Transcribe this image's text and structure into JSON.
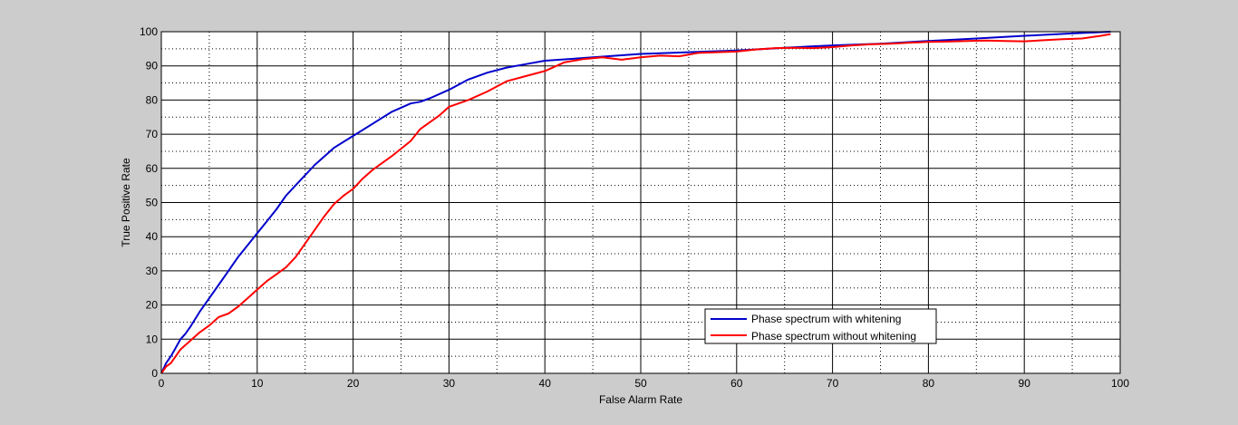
{
  "chart_data": {
    "type": "line",
    "title": "",
    "xlabel": "False Alarm Rate",
    "ylabel": "True Positive Rate",
    "xlim": [
      0,
      100
    ],
    "ylim": [
      0,
      100
    ],
    "xticks": [
      0,
      10,
      20,
      30,
      40,
      50,
      60,
      70,
      80,
      90,
      100
    ],
    "yticks": [
      0,
      10,
      20,
      30,
      40,
      50,
      60,
      70,
      80,
      90,
      100
    ],
    "grid": true,
    "minor_grid": true,
    "legend_position": "lower-right",
    "series": [
      {
        "name": "Phase spectrum with whitening",
        "color": "#0000cc",
        "x": [
          0,
          0.5,
          1,
          1.5,
          2,
          2.5,
          3,
          4,
          5,
          6,
          7,
          8,
          9,
          10,
          11,
          12,
          13,
          14,
          16,
          18,
          20,
          22,
          24,
          26,
          27,
          28,
          30,
          32,
          34,
          36,
          38,
          40,
          45,
          50,
          55,
          60,
          65,
          70,
          75,
          80,
          85,
          90,
          95,
          99
        ],
        "y": [
          0,
          3,
          5,
          7.5,
          10,
          11.5,
          13.5,
          18,
          22,
          26,
          30,
          34,
          37.5,
          41,
          44.5,
          48,
          52,
          55,
          61,
          66,
          69.5,
          73,
          76.5,
          79,
          79.5,
          80.5,
          83,
          86,
          88,
          89.5,
          90.5,
          91.5,
          92.5,
          93.5,
          94,
          94.5,
          95.3,
          96,
          96.5,
          97.3,
          98,
          98.8,
          99.5,
          100
        ]
      },
      {
        "name": "Phase spectrum without whitening",
        "color": "#ff0000",
        "x": [
          0,
          0.5,
          1,
          1.5,
          2,
          3,
          4,
          5,
          6,
          7,
          8,
          9,
          10,
          11,
          12,
          13,
          14,
          15,
          16,
          17,
          18,
          19,
          20,
          21,
          22,
          24,
          26,
          27,
          28,
          29,
          30,
          32,
          34,
          36,
          38,
          40,
          42,
          44,
          46,
          48,
          50,
          52,
          54,
          56,
          58,
          60,
          62,
          64,
          66,
          68,
          70,
          72,
          74,
          76,
          78,
          80,
          82,
          84,
          86,
          88,
          90,
          92,
          94,
          96,
          98,
          99
        ],
        "y": [
          0,
          2,
          3,
          5,
          7,
          9.5,
          12,
          14,
          16.5,
          17.5,
          19.5,
          22,
          24.5,
          27,
          29,
          31,
          34,
          38,
          42,
          46,
          49.5,
          52,
          54,
          57,
          59.5,
          63.5,
          68,
          71.5,
          73.5,
          75.5,
          78,
          80,
          82.5,
          85.5,
          87,
          88.5,
          91,
          92,
          92.5,
          91.8,
          92.5,
          93,
          92.8,
          93.8,
          94,
          94.2,
          94.8,
          95.2,
          95.3,
          95.2,
          95.5,
          96,
          96.3,
          96.5,
          96.8,
          97,
          97.1,
          97.3,
          97.4,
          97.3,
          97.2,
          97.5,
          97.8,
          98,
          98.8,
          99.3
        ]
      }
    ]
  }
}
